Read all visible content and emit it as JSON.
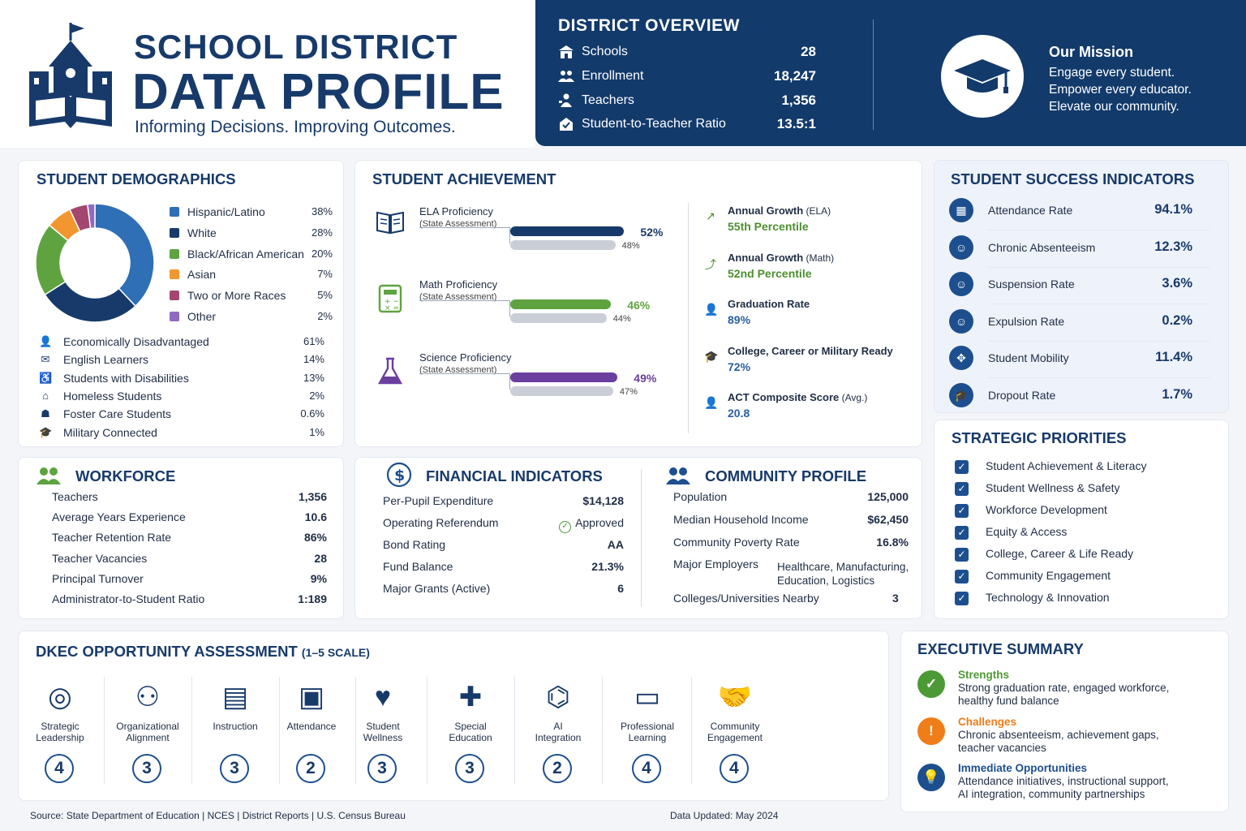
{
  "header": {
    "title_line1": "SCHOOL DISTRICT",
    "title_line2": "DATA PROFILE",
    "tagline": "Informing Decisions. Improving Outcomes."
  },
  "overview": {
    "title": "DISTRICT OVERVIEW",
    "rows": [
      {
        "icon": "school-icon",
        "label": "Schools",
        "value": "28"
      },
      {
        "icon": "people-icon",
        "label": "Enrollment",
        "value": "18,247"
      },
      {
        "icon": "teacher-icon",
        "label": "Teachers",
        "value": "1,356"
      },
      {
        "icon": "ratio-icon",
        "label": "Student-to-Teacher Ratio",
        "value": "13.5:1"
      }
    ],
    "mission_title": "Our Mission",
    "mission_lines": [
      "Engage every student.",
      "Empower every educator.",
      "Elevate our community."
    ]
  },
  "demographics": {
    "title": "STUDENT DEMOGRAPHICS",
    "legend": [
      {
        "label": "Hispanic/Latino",
        "pct": "38%",
        "value": 38,
        "color": "#2e6fb5"
      },
      {
        "label": "White",
        "pct": "28%",
        "value": 28,
        "color": "#173a6b"
      },
      {
        "label": "Black/African American",
        "pct": "20%",
        "value": 20,
        "color": "#5ea340"
      },
      {
        "label": "Asian",
        "pct": "7%",
        "value": 7,
        "color": "#f2962f"
      },
      {
        "label": "Two or More Races",
        "pct": "5%",
        "value": 5,
        "color": "#a4476f"
      },
      {
        "label": "Other",
        "pct": "2%",
        "value": 2,
        "color": "#8f6ac0"
      }
    ],
    "groups": [
      {
        "icon": "person-icon",
        "label": "Economically Disadvantaged",
        "pct": "61%"
      },
      {
        "icon": "chat-icon",
        "label": "English Learners",
        "pct": "14%"
      },
      {
        "icon": "wheelchair-icon",
        "label": "Students with Disabilities",
        "pct": "13%"
      },
      {
        "icon": "home-icon",
        "label": "Homeless Students",
        "pct": "2%"
      },
      {
        "icon": "family-icon",
        "label": "Foster Care Students",
        "pct": "0.6%"
      },
      {
        "icon": "military-cap-icon",
        "label": "Military Connected",
        "pct": "1%"
      }
    ]
  },
  "achievement": {
    "title": "STUDENT ACHIEVEMENT",
    "subjects": [
      {
        "name": "ELA Proficiency",
        "sub": "(State Assessment)",
        "district": 52,
        "district_label": "52%",
        "state": 48,
        "state_label": "48%",
        "color": "#173a6b",
        "label_color": "#173a6b"
      },
      {
        "name": "Math Proficiency",
        "sub": "(State Assessment)",
        "district": 46,
        "district_label": "46%",
        "state": 44,
        "state_label": "44%",
        "color": "#5ea340",
        "label_color": "#5ea340"
      },
      {
        "name": "Science Proficiency",
        "sub": "(State Assessment)",
        "district": 49,
        "district_label": "49%",
        "state": 47,
        "state_label": "47%",
        "color": "#6b3fa0",
        "label_color": "#6b3fa0"
      }
    ],
    "metrics": [
      {
        "icon": "growth-icon",
        "label": "Annual Growth",
        "label_suffix": " (ELA)",
        "value": "55th Percentile",
        "color": "#4c8f2f"
      },
      {
        "icon": "growth-icon",
        "label": "Annual Growth",
        "label_suffix": " (Math)",
        "value": "52nd Percentile",
        "color": "#4c8f2f"
      },
      {
        "icon": "graduate-icon",
        "label": "Graduation Rate",
        "label_suffix": "",
        "value": "89%",
        "color": "#2a5fa3"
      },
      {
        "icon": "cap-icon",
        "label": "College, Career or Military Ready",
        "label_suffix": "",
        "value": "72%",
        "color": "#2a5fa3"
      },
      {
        "icon": "person-stats-icon",
        "label": "ACT Composite Score",
        "label_suffix": " (Avg.)",
        "value": "20.8",
        "color": "#2a5fa3"
      }
    ]
  },
  "success": {
    "title": "STUDENT SUCCESS INDICATORS",
    "rows": [
      {
        "icon": "calendar-icon",
        "label": "Attendance Rate",
        "value": "94.1%"
      },
      {
        "icon": "user-badge-icon",
        "label": "Chronic Absenteeism",
        "value": "12.3%"
      },
      {
        "icon": "user-badge-icon",
        "label": "Suspension Rate",
        "value": "3.6%"
      },
      {
        "icon": "user-badge-icon",
        "label": "Expulsion Rate",
        "value": "0.2%"
      },
      {
        "icon": "mobility-icon",
        "label": "Student Mobility",
        "value": "11.4%"
      },
      {
        "icon": "cap-icon",
        "label": "Dropout Rate",
        "value": "1.7%"
      }
    ]
  },
  "workforce": {
    "title": "WORKFORCE",
    "rows": [
      {
        "label": "Teachers",
        "value": "1,356"
      },
      {
        "label": "Average Years Experience",
        "value": "10.6"
      },
      {
        "label": "Teacher Retention Rate",
        "value": "86%"
      },
      {
        "label": "Teacher Vacancies",
        "value": "28"
      },
      {
        "label": "Principal Turnover",
        "value": "9%"
      },
      {
        "label": "Administrator-to-Student Ratio",
        "value": "1:189"
      }
    ]
  },
  "financial": {
    "title": "FINANCIAL INDICATORS",
    "rows": [
      {
        "label": "Per-Pupil Expenditure",
        "value": "$14,128"
      },
      {
        "label": "Operating Referendum",
        "value": "Approved"
      },
      {
        "label": "Bond Rating",
        "value": "AA"
      },
      {
        "label": "Fund Balance",
        "value": "21.3%"
      },
      {
        "label": "Major Grants (Active)",
        "value": "6"
      }
    ]
  },
  "community": {
    "title": "COMMUNITY PROFILE",
    "rows": [
      {
        "label": "Population",
        "value": "125,000"
      },
      {
        "label": "Median Household Income",
        "value": "$62,450"
      },
      {
        "label": "Community Poverty Rate",
        "value": "16.8%"
      }
    ],
    "employers_label": "Major Employers",
    "employers_value_1": "Healthcare, Manufacturing,",
    "employers_value_2": "Education, Logistics",
    "colleges_label": "Colleges/Universities Nearby",
    "colleges_value": "3"
  },
  "priorities": {
    "title": "STRATEGIC PRIORITIES",
    "items": [
      "Student Achievement & Literacy",
      "Student Wellness & Safety",
      "Workforce Development",
      "Equity & Access",
      "College, Career & Life Ready",
      "Community Engagement",
      "Technology & Innovation"
    ]
  },
  "opportunity": {
    "title": "DKEC OPPORTUNITY ASSESSMENT",
    "scale": "(1–5 SCALE)",
    "items": [
      {
        "icon": "target-icon",
        "line1": "Strategic",
        "line2": "Leadership",
        "score": "4"
      },
      {
        "icon": "org-chart-icon",
        "line1": "Organizational",
        "line2": "Alignment",
        "score": "3"
      },
      {
        "icon": "presentation-icon",
        "line1": "Instruction",
        "line2": "",
        "score": "3"
      },
      {
        "icon": "calendar-check-icon",
        "line1": "Attendance",
        "line2": "",
        "score": "2"
      },
      {
        "icon": "heart-hand-icon",
        "line1": "Student",
        "line2": "Wellness",
        "score": "3"
      },
      {
        "icon": "puzzle-icon",
        "line1": "Special",
        "line2": "Education",
        "score": "3"
      },
      {
        "icon": "ai-chip-icon",
        "line1": "AI",
        "line2": "Integration",
        "score": "2"
      },
      {
        "icon": "teaching-board-icon",
        "line1": "Professional",
        "line2": "Learning",
        "score": "4"
      },
      {
        "icon": "handshake-icon",
        "line1": "Community",
        "line2": "Engagement",
        "score": "4"
      }
    ]
  },
  "summary": {
    "title": "EXECUTIVE SUMMARY",
    "items": [
      {
        "icon": "check-circle-icon",
        "heading": "Strengths",
        "line1": "Strong graduation rate, engaged workforce,",
        "line2": "healthy fund balance",
        "color": "#4c9a36"
      },
      {
        "icon": "alert-circle-icon",
        "heading": "Challenges",
        "line1": "Chronic absenteeism, achievement gaps,",
        "line2": "teacher vacancies",
        "color": "#ef7d1a"
      },
      {
        "icon": "lightbulb-icon",
        "heading": "Immediate Opportunities",
        "line1": "Attendance initiatives, instructional support,",
        "line2": "AI integration, community partnerships",
        "color": "#1d4f8f"
      }
    ]
  },
  "footer": {
    "source": "Source: State Department of Education | NCES | District Reports | U.S. Census Bureau",
    "updated": "Data Updated: May 2024"
  }
}
